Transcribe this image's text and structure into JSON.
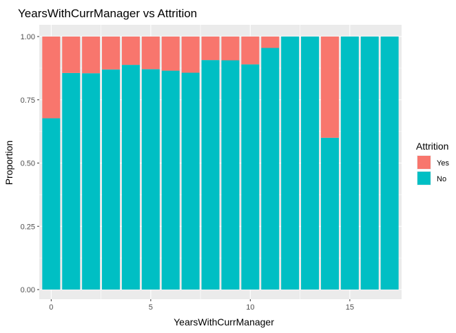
{
  "chart_data": {
    "type": "bar",
    "stacked": true,
    "title": "YearsWithCurrManager vs Attrition",
    "xlabel": "YearsWithCurrManager",
    "ylabel": "Proportion",
    "x": [
      0,
      1,
      2,
      3,
      4,
      5,
      6,
      7,
      8,
      9,
      10,
      11,
      12,
      13,
      14,
      15,
      16,
      17
    ],
    "xlim": [
      -0.6,
      17.6
    ],
    "ylim": [
      0,
      1
    ],
    "x_ticks": [
      0,
      5,
      10,
      15
    ],
    "y_ticks": [
      0,
      0.25,
      0.5,
      0.75,
      1.0
    ],
    "x_tick_labels": [
      "0",
      "5",
      "10",
      "15"
    ],
    "y_tick_labels": [
      "0.00",
      "0.25",
      "0.50",
      "0.75",
      "1.00"
    ],
    "series": [
      {
        "name": "No",
        "color": "#00BFC4",
        "values": [
          0.677,
          0.856,
          0.855,
          0.87,
          0.888,
          0.871,
          0.865,
          0.857,
          0.907,
          0.906,
          0.89,
          0.955,
          1.0,
          1.0,
          0.6,
          1.0,
          1.0,
          1.0
        ]
      },
      {
        "name": "Yes",
        "color": "#F8766D",
        "values": [
          0.323,
          0.144,
          0.145,
          0.13,
          0.112,
          0.129,
          0.135,
          0.143,
          0.093,
          0.094,
          0.11,
          0.045,
          0.0,
          0.0,
          0.4,
          0.0,
          0.0,
          0.0
        ]
      }
    ],
    "legend": {
      "title": "Attrition",
      "position": "right",
      "entries": [
        {
          "label": "Yes",
          "color": "#F8766D"
        },
        {
          "label": "No",
          "color": "#00BFC4"
        }
      ]
    },
    "panel_background": "#EBEBEB",
    "grid": true
  }
}
